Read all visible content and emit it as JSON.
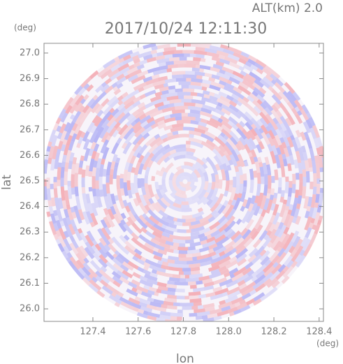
{
  "chart_data": {
    "type": "radar-image",
    "title": "2017/10/24 12:11:30",
    "annotation": "ALT(km) 2.0",
    "x_label": "lon",
    "y_label": "lat",
    "x_unit": "(deg)",
    "y_unit": "(deg)",
    "xlim": [
      127.184,
      128.419
    ],
    "ylim": [
      25.951,
      27.038
    ],
    "xticks": [
      127.4,
      127.6,
      127.8,
      {
        "value": 128,
        "label": "128.0"
      },
      128.2,
      128.4
    ],
    "yticks": [
      {
        "value": 26,
        "label": "26.0"
      },
      26.1,
      26.2,
      26.3,
      26.4,
      26.5,
      26.6,
      26.7,
      26.8,
      26.9,
      {
        "value": 27,
        "label": "27.0"
      }
    ]
  }
}
